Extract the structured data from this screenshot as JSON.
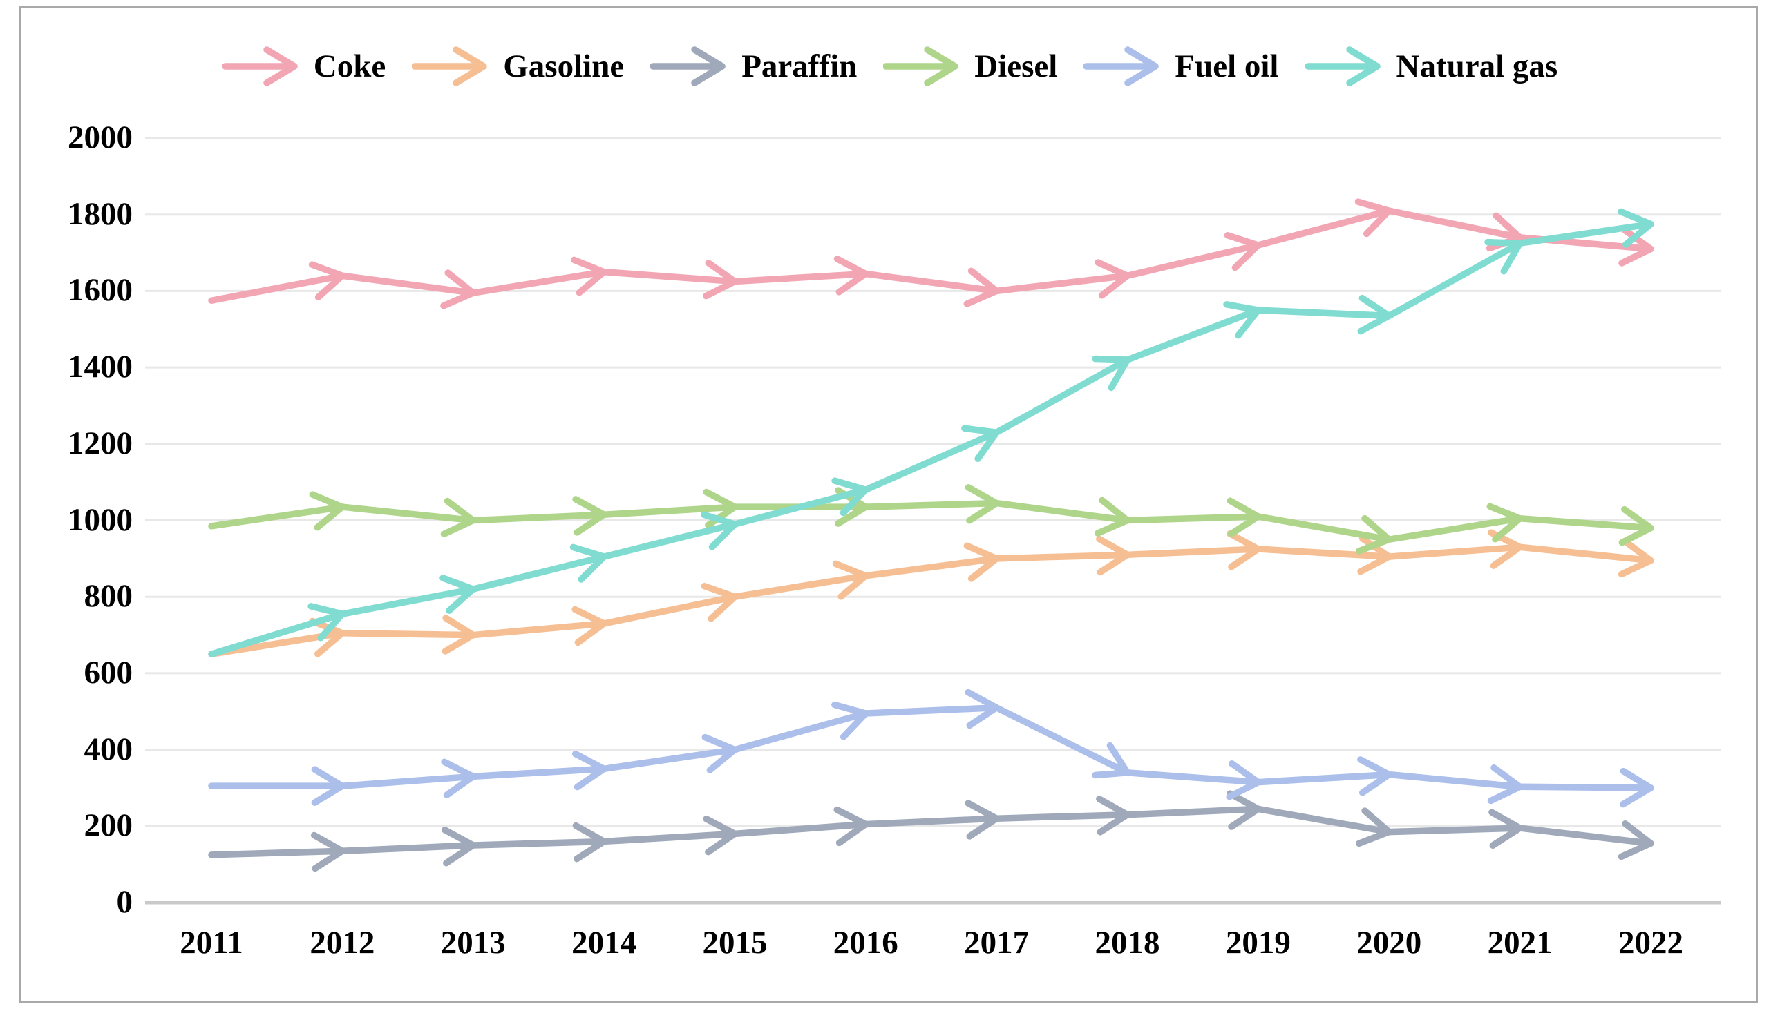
{
  "chart_data": {
    "type": "line",
    "title": "",
    "xlabel": "",
    "ylabel": "",
    "x": [
      "2011",
      "2012",
      "2013",
      "2014",
      "2015",
      "2016",
      "2017",
      "2018",
      "2019",
      "2020",
      "2021",
      "2022"
    ],
    "series": [
      {
        "name": "Coke",
        "color": "#f2a6b4",
        "values": [
          1575,
          1640,
          1595,
          1650,
          1625,
          1645,
          1600,
          1640,
          1720,
          1810,
          1740,
          1710
        ]
      },
      {
        "name": "Gasoline",
        "color": "#f6be93",
        "values": [
          650,
          705,
          700,
          730,
          800,
          855,
          900,
          910,
          925,
          905,
          930,
          895
        ]
      },
      {
        "name": "Paraffin",
        "color": "#9fa9ba",
        "values": [
          125,
          135,
          150,
          160,
          180,
          205,
          220,
          230,
          245,
          185,
          195,
          155
        ]
      },
      {
        "name": "Diesel",
        "color": "#afd58b",
        "values": [
          985,
          1035,
          1000,
          1015,
          1035,
          1035,
          1045,
          1000,
          1010,
          950,
          1005,
          980
        ]
      },
      {
        "name": "Fuel oil",
        "color": "#abbfea",
        "values": [
          305,
          305,
          330,
          350,
          400,
          495,
          510,
          340,
          315,
          335,
          303,
          300
        ]
      },
      {
        "name": "Natural gas",
        "color": "#80dcd1",
        "values": [
          650,
          755,
          820,
          905,
          990,
          1080,
          1230,
          1420,
          1550,
          1535,
          1725,
          1775
        ]
      }
    ],
    "ylim": [
      0,
      2000
    ],
    "ytick_step": 200,
    "y_tick_labels": [
      "0",
      "200",
      "400",
      "600",
      "800",
      "1000",
      "1200",
      "1400",
      "1600",
      "1800",
      "2000"
    ],
    "grid": "horizontal-gridlines",
    "legend_position": "top-center",
    "marker_style": "arrow-per-segment",
    "gridline_color": "#e8e8e8",
    "axis_line_color": "#c9c9c9",
    "text_color": "#000000"
  }
}
